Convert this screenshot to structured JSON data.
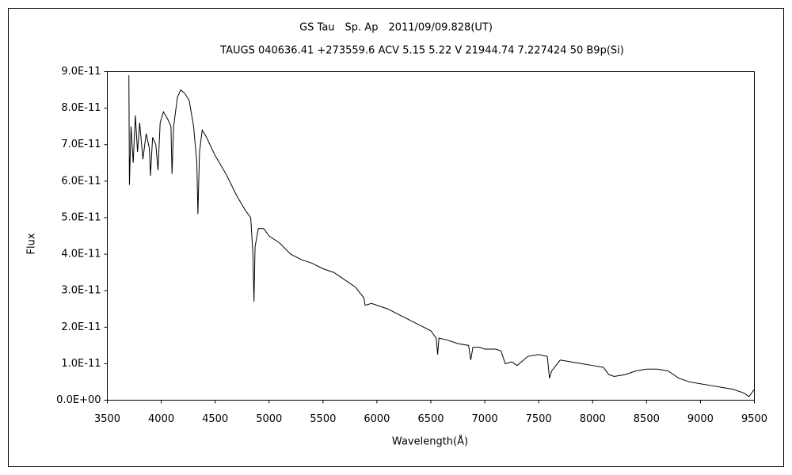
{
  "chart_data": {
    "type": "line",
    "title": "GS Tau　Sp. Ap　2011/09/09.828(UT)",
    "subtitle": "TAUGS 040636.41 +273559.6 ACV 5.15 5.22 V 21944.74 7.227424 50 B9p(Si)",
    "x_label": "Wavelength(Å)",
    "y_label": "Flux",
    "color": "#000000",
    "x": [
      3700,
      3705,
      3720,
      3740,
      3760,
      3780,
      3800,
      3830,
      3860,
      3890,
      3900,
      3920,
      3950,
      3970,
      3990,
      4020,
      4060,
      4090,
      4100,
      4115,
      4150,
      4180,
      4220,
      4260,
      4300,
      4330,
      4340,
      4355,
      4380,
      4420,
      4500,
      4600,
      4700,
      4780,
      4830,
      4850,
      4860,
      4870,
      4900,
      4950,
      5000,
      5100,
      5200,
      5300,
      5400,
      5500,
      5600,
      5700,
      5800,
      5880,
      5890,
      5950,
      6000,
      6100,
      6200,
      6300,
      6400,
      6500,
      6550,
      6563,
      6575,
      6650,
      6750,
      6850,
      6870,
      6890,
      6950,
      7000,
      7100,
      7150,
      7190,
      7250,
      7300,
      7400,
      7500,
      7580,
      7600,
      7620,
      7700,
      7800,
      7900,
      8000,
      8100,
      8150,
      8200,
      8300,
      8400,
      8500,
      8600,
      8700,
      8800,
      8900,
      9000,
      9100,
      9200,
      9300,
      9400,
      9450,
      9500
    ],
    "values": [
      8.9e-11,
      5.9e-11,
      7.5e-11,
      6.5e-11,
      7.8e-11,
      6.8e-11,
      7.6e-11,
      6.6e-11,
      7.3e-11,
      6.9e-11,
      6.15e-11,
      7.2e-11,
      7e-11,
      6.3e-11,
      7.6e-11,
      7.9e-11,
      7.7e-11,
      7.5e-11,
      6.2e-11,
      7.5e-11,
      8.3e-11,
      8.5e-11,
      8.4e-11,
      8.2e-11,
      7.5e-11,
      6.5e-11,
      5.1e-11,
      6.8e-11,
      7.4e-11,
      7.2e-11,
      6.7e-11,
      6.2e-11,
      5.6e-11,
      5.2e-11,
      5e-11,
      4e-11,
      2.7e-11,
      4.2e-11,
      4.7e-11,
      4.7e-11,
      4.5e-11,
      4.3e-11,
      4e-11,
      3.85e-11,
      3.75e-11,
      3.6e-11,
      3.5e-11,
      3.3e-11,
      3.1e-11,
      2.8e-11,
      2.6e-11,
      2.65e-11,
      2.6e-11,
      2.5e-11,
      2.35e-11,
      2.2e-11,
      2.05e-11,
      1.9e-11,
      1.7e-11,
      1.25e-11,
      1.7e-11,
      1.65e-11,
      1.55e-11,
      1.5e-11,
      1.1e-11,
      1.45e-11,
      1.45e-11,
      1.4e-11,
      1.4e-11,
      1.35e-11,
      1e-11,
      1.05e-11,
      9.5e-12,
      1.2e-11,
      1.25e-11,
      1.2e-11,
      6e-12,
      8e-12,
      1.1e-11,
      1.05e-11,
      1e-11,
      9.5e-12,
      9e-12,
      7e-12,
      6.5e-12,
      7e-12,
      8e-12,
      8.5e-12,
      8.5e-12,
      8e-12,
      6e-12,
      5e-12,
      4.5e-12,
      4e-12,
      3.5e-12,
      3e-12,
      2e-12,
      1e-12,
      3e-12
    ],
    "xlim": [
      3500,
      9500
    ],
    "xticks": [
      3500,
      4000,
      4500,
      5000,
      5500,
      6000,
      6500,
      7000,
      7500,
      8000,
      8500,
      9000,
      9500
    ],
    "ylim": [
      0,
      9e-11
    ],
    "yticks": [
      {
        "value": 0,
        "label": "0.0E+00"
      },
      {
        "value": 1e-11,
        "label": "1.0E-11"
      },
      {
        "value": 2e-11,
        "label": "2.0E-11"
      },
      {
        "value": 3e-11,
        "label": "3.0E-11"
      },
      {
        "value": 4e-11,
        "label": "4.0E-11"
      },
      {
        "value": 5e-11,
        "label": "5.0E-11"
      },
      {
        "value": 6e-11,
        "label": "6.0E-11"
      },
      {
        "value": 7e-11,
        "label": "7.0E-11"
      },
      {
        "value": 8e-11,
        "label": "8.0E-11"
      },
      {
        "value": 9e-11,
        "label": "9.0E-11"
      }
    ],
    "grid": false
  }
}
